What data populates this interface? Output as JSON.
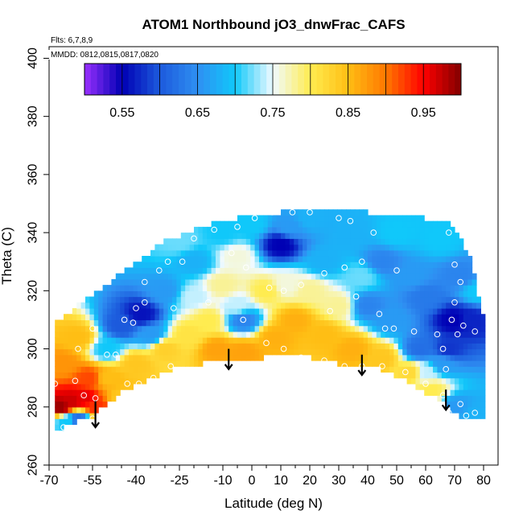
{
  "chart_data": {
    "type": "heatmap",
    "title": "ATOM1 Northbound jO3_dnwFrac_CAFS",
    "notes": {
      "flights": "Flts: 6,7,8,9",
      "dates": "MMDD: 0812,0815,0817,0820"
    },
    "xlabel": "Latitude (deg N)",
    "ylabel": "Theta (C)",
    "xlim": [
      -70,
      85
    ],
    "ylim": [
      260,
      404
    ],
    "x_ticks": [
      -70,
      -55,
      -40,
      -25,
      -10,
      0,
      10,
      20,
      30,
      40,
      50,
      60,
      70,
      80
    ],
    "x_tick_labels": [
      "-70",
      "-55",
      "-40",
      "-25",
      "-10",
      "0",
      "10",
      "20",
      "30",
      "40",
      "50",
      "60",
      "70",
      "80"
    ],
    "x_minor_ticks": [
      -65,
      -60,
      -50,
      -45,
      -35,
      -30,
      -20,
      -15,
      -5,
      5,
      15,
      25,
      35,
      45,
      55,
      65,
      75
    ],
    "y_ticks": [
      260,
      280,
      300,
      320,
      340,
      360,
      380,
      400
    ],
    "y_tick_labels": [
      "260",
      "280",
      "300",
      "320",
      "340",
      "360",
      "380",
      "400"
    ],
    "colorbar": {
      "range": [
        0.5,
        1.0
      ],
      "tick_values": [
        0.55,
        0.65,
        0.75,
        0.85,
        0.95
      ],
      "tick_labels": [
        "0.55",
        "0.65",
        "0.75",
        "0.85",
        "0.95"
      ],
      "color_stops": [
        {
          "value": 0.5,
          "color": "#9b30ff"
        },
        {
          "value": 0.55,
          "color": "#0000b4"
        },
        {
          "value": 0.6,
          "color": "#1c5adc"
        },
        {
          "value": 0.65,
          "color": "#2f8ff2"
        },
        {
          "value": 0.7,
          "color": "#10c8fa"
        },
        {
          "value": 0.75,
          "color": "#f0faff"
        },
        {
          "value": 0.8,
          "color": "#ffec50"
        },
        {
          "value": 0.85,
          "color": "#ffbe14"
        },
        {
          "value": 0.9,
          "color": "#ff7800"
        },
        {
          "value": 0.95,
          "color": "#ff0000"
        },
        {
          "value": 1.0,
          "color": "#820000"
        }
      ]
    },
    "field": {
      "lat_min": -68,
      "lat_max": 80,
      "lower_boundary": [
        [
          -68,
          272
        ],
        [
          -55,
          277
        ],
        [
          -45,
          285
        ],
        [
          -35,
          290
        ],
        [
          -25,
          294
        ],
        [
          -10,
          296
        ],
        [
          0,
          296
        ],
        [
          10,
          299
        ],
        [
          20,
          297
        ],
        [
          30,
          295
        ],
        [
          45,
          293
        ],
        [
          55,
          288
        ],
        [
          65,
          282
        ],
        [
          72,
          277
        ],
        [
          80,
          276
        ]
      ],
      "upper_boundary": [
        [
          -68,
          309
        ],
        [
          -60,
          315
        ],
        [
          -50,
          322
        ],
        [
          -40,
          330
        ],
        [
          -30,
          337
        ],
        [
          -20,
          341
        ],
        [
          -10,
          344
        ],
        [
          0,
          346
        ],
        [
          10,
          347
        ],
        [
          20,
          347
        ],
        [
          30,
          347
        ],
        [
          40,
          347
        ],
        [
          50,
          346
        ],
        [
          60,
          345
        ],
        [
          68,
          344
        ],
        [
          72,
          338
        ],
        [
          76,
          330
        ],
        [
          78,
          320
        ],
        [
          80,
          310
        ]
      ],
      "anchors": [
        [
          -66,
          280,
          0.99
        ],
        [
          -62,
          282,
          0.97
        ],
        [
          -58,
          283,
          0.96
        ],
        [
          -54,
          280,
          0.93
        ],
        [
          -64,
          275,
          0.7
        ],
        [
          -60,
          276,
          0.62
        ],
        [
          -56,
          290,
          0.92
        ],
        [
          -65,
          295,
          0.88
        ],
        [
          -50,
          290,
          0.85
        ],
        [
          -45,
          283,
          0.84
        ],
        [
          -60,
          304,
          0.85
        ],
        [
          -50,
          300,
          0.7
        ],
        [
          -45,
          308,
          0.6
        ],
        [
          -38,
          312,
          0.56
        ],
        [
          -35,
          305,
          0.66
        ],
        [
          -40,
          295,
          0.84
        ],
        [
          -30,
          300,
          0.83
        ],
        [
          -22,
          305,
          0.81
        ],
        [
          -30,
          320,
          0.66
        ],
        [
          -20,
          318,
          0.74
        ],
        [
          -15,
          310,
          0.8
        ],
        [
          -10,
          322,
          0.78
        ],
        [
          -5,
          315,
          0.74
        ],
        [
          -3,
          310,
          0.64
        ],
        [
          -20,
          330,
          0.68
        ],
        [
          -25,
          337,
          0.72
        ],
        [
          -10,
          340,
          0.7
        ],
        [
          0,
          343,
          0.7
        ],
        [
          -5,
          332,
          0.76
        ],
        [
          5,
          320,
          0.8
        ],
        [
          -12,
          300,
          0.87
        ],
        [
          -3,
          299,
          0.87
        ],
        [
          8,
          304,
          0.86
        ],
        [
          15,
          310,
          0.86
        ],
        [
          25,
          305,
          0.85
        ],
        [
          35,
          300,
          0.86
        ],
        [
          45,
          297,
          0.84
        ],
        [
          55,
          292,
          0.82
        ],
        [
          62,
          286,
          0.8
        ],
        [
          70,
          280,
          0.66
        ],
        [
          77,
          277,
          0.68
        ],
        [
          12,
          322,
          0.76
        ],
        [
          20,
          320,
          0.78
        ],
        [
          30,
          315,
          0.78
        ],
        [
          25,
          330,
          0.68
        ],
        [
          10,
          336,
          0.55
        ],
        [
          13,
          342,
          0.66
        ],
        [
          20,
          345,
          0.68
        ],
        [
          35,
          340,
          0.68
        ],
        [
          45,
          330,
          0.64
        ],
        [
          55,
          325,
          0.66
        ],
        [
          60,
          318,
          0.63
        ],
        [
          65,
          338,
          0.7
        ],
        [
          72,
          325,
          0.64
        ],
        [
          70,
          310,
          0.55
        ],
        [
          68,
          300,
          0.58
        ],
        [
          75,
          310,
          0.57
        ],
        [
          78,
          320,
          0.7
        ],
        [
          58,
          300,
          0.62
        ],
        [
          48,
          310,
          0.66
        ],
        [
          40,
          315,
          0.64
        ],
        [
          38,
          325,
          0.72
        ],
        [
          50,
          340,
          0.7
        ],
        [
          66,
          295,
          0.66
        ],
        [
          60,
          292,
          0.74
        ]
      ]
    },
    "observations": [
      [
        -68,
        288
      ],
      [
        -61,
        289
      ],
      [
        -58,
        284
      ],
      [
        -55,
        276
      ],
      [
        -51,
        276
      ],
      [
        -65,
        273
      ],
      [
        -54,
        283
      ],
      [
        -60,
        300
      ],
      [
        -55,
        307
      ],
      [
        -50,
        298
      ],
      [
        -47,
        298
      ],
      [
        -43,
        288
      ],
      [
        -39,
        288
      ],
      [
        -34,
        290
      ],
      [
        -28,
        294
      ],
      [
        -44,
        310
      ],
      [
        -40,
        314
      ],
      [
        -37,
        316
      ],
      [
        -41,
        309
      ],
      [
        -37,
        323
      ],
      [
        -32,
        327
      ],
      [
        -29,
        330
      ],
      [
        -24,
        330
      ],
      [
        -27,
        314
      ],
      [
        -20,
        338
      ],
      [
        -13,
        341
      ],
      [
        -5,
        342
      ],
      [
        1,
        345
      ],
      [
        7,
        347
      ],
      [
        14,
        347
      ],
      [
        20,
        347
      ],
      [
        30,
        345
      ],
      [
        34,
        344
      ],
      [
        42,
        340
      ],
      [
        -7,
        333
      ],
      [
        -2,
        328
      ],
      [
        6,
        321
      ],
      [
        11,
        320
      ],
      [
        17,
        322
      ],
      [
        25,
        326
      ],
      [
        32,
        328
      ],
      [
        38,
        330
      ],
      [
        50,
        327
      ],
      [
        -15,
        316
      ],
      [
        -3,
        310
      ],
      [
        5,
        302
      ],
      [
        11,
        300
      ],
      [
        17,
        297
      ],
      [
        25,
        296
      ],
      [
        32,
        294
      ],
      [
        38,
        294
      ],
      [
        45,
        294
      ],
      [
        53,
        292
      ],
      [
        60,
        288
      ],
      [
        66,
        284
      ],
      [
        72,
        281
      ],
      [
        77,
        278
      ],
      [
        46,
        307
      ],
      [
        49,
        307
      ],
      [
        56,
        306
      ],
      [
        64,
        305
      ],
      [
        66,
        300
      ],
      [
        69,
        310
      ],
      [
        71,
        305
      ],
      [
        73,
        308
      ],
      [
        77,
        306
      ],
      [
        70,
        316
      ],
      [
        72,
        323
      ],
      [
        70,
        329
      ],
      [
        68,
        340
      ],
      [
        67,
        293
      ],
      [
        74,
        277
      ],
      [
        68,
        278
      ],
      [
        36,
        318
      ],
      [
        27,
        313
      ],
      [
        44,
        312
      ]
    ],
    "markers": [
      {
        "x": -54,
        "y_from": 282,
        "y_to": 273
      },
      {
        "x": -8,
        "y_from": 300,
        "y_to": 293
      },
      {
        "x": 38,
        "y_from": 298,
        "y_to": 291
      },
      {
        "x": 67,
        "y_from": 286,
        "y_to": 279
      }
    ]
  }
}
